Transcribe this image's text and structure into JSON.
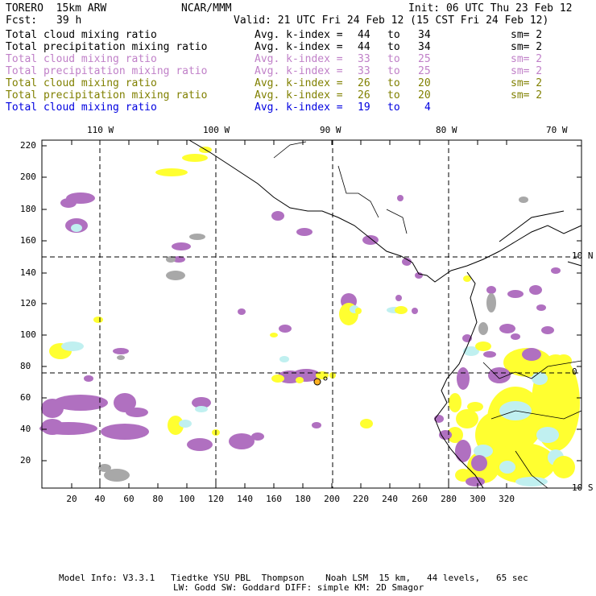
{
  "header": {
    "model": "TORERO  15km ARW",
    "org": "NCAR/MMM",
    "init": "Init: 06 UTC Thu 23 Feb 12",
    "fcst_label": "Fcst:",
    "fcst_value": "39 h",
    "valid": "Valid: 21 UTC Fri 24 Feb 12 (15 CST Fri 24 Feb 12)"
  },
  "legend": [
    {
      "field": "Total cloud mixing ratio",
      "avg": "Avg. k-index =",
      "from": "44",
      "to_word": "to",
      "to": "34",
      "sm": "sm= 2",
      "color": "#000000"
    },
    {
      "field": "Total precipitation mixing ratio",
      "avg": "Avg. k-index =",
      "from": "44",
      "to_word": "to",
      "to": "34",
      "sm": "sm= 2",
      "color": "#000000"
    },
    {
      "field": "Total cloud mixing ratio",
      "avg": "Avg. k-index =",
      "from": "33",
      "to_word": "to",
      "to": "25",
      "sm": "sm= 2",
      "color": "#c080c8"
    },
    {
      "field": "Total precipitation mixing ratio",
      "avg": "Avg. k-index =",
      "from": "33",
      "to_word": "to",
      "to": "25",
      "sm": "sm= 2",
      "color": "#c080c8"
    },
    {
      "field": "Total cloud mixing ratio",
      "avg": "Avg. k-index =",
      "from": "26",
      "to_word": "to",
      "to": "20",
      "sm": "sm= 2",
      "color": "#808000"
    },
    {
      "field": "Total precipitation mixing ratio",
      "avg": "Avg. k-index =",
      "from": "26",
      "to_word": "to",
      "to": "20",
      "sm": "sm= 2",
      "color": "#808000"
    },
    {
      "field": "Total cloud mixing ratio",
      "avg": "Avg. k-index =",
      "from": "19",
      "to_word": "to",
      "to": "4",
      "sm": "",
      "color": "#0000e0"
    }
  ],
  "map": {
    "lon_labels": [
      "110 W",
      "100 W",
      "90 W",
      "80 W",
      "70 W"
    ],
    "lat_labels": [
      "10 N",
      "0",
      "10 S"
    ],
    "y_ticks": [
      "220",
      "200",
      "180",
      "160",
      "140",
      "120",
      "100",
      "80",
      "60",
      "40",
      "20"
    ],
    "x_ticks": [
      "20",
      "40",
      "60",
      "80",
      "100",
      "120",
      "140",
      "160",
      "180",
      "200",
      "220",
      "240",
      "260",
      "280",
      "300",
      "320"
    ],
    "colors": {
      "purple": "#b070c0",
      "yellow": "#ffff30",
      "cyan": "#c0f0f0",
      "gray": "#a8a8a8"
    }
  },
  "footer": {
    "line1": "Model Info: V3.3.1   Tiedtke YSU PBL  Thompson    Noah LSM  15 km,   44 levels,   65 sec",
    "line2": "LW: Godd SW: Goddard DIFF: simple KM: 2D Smagor"
  }
}
